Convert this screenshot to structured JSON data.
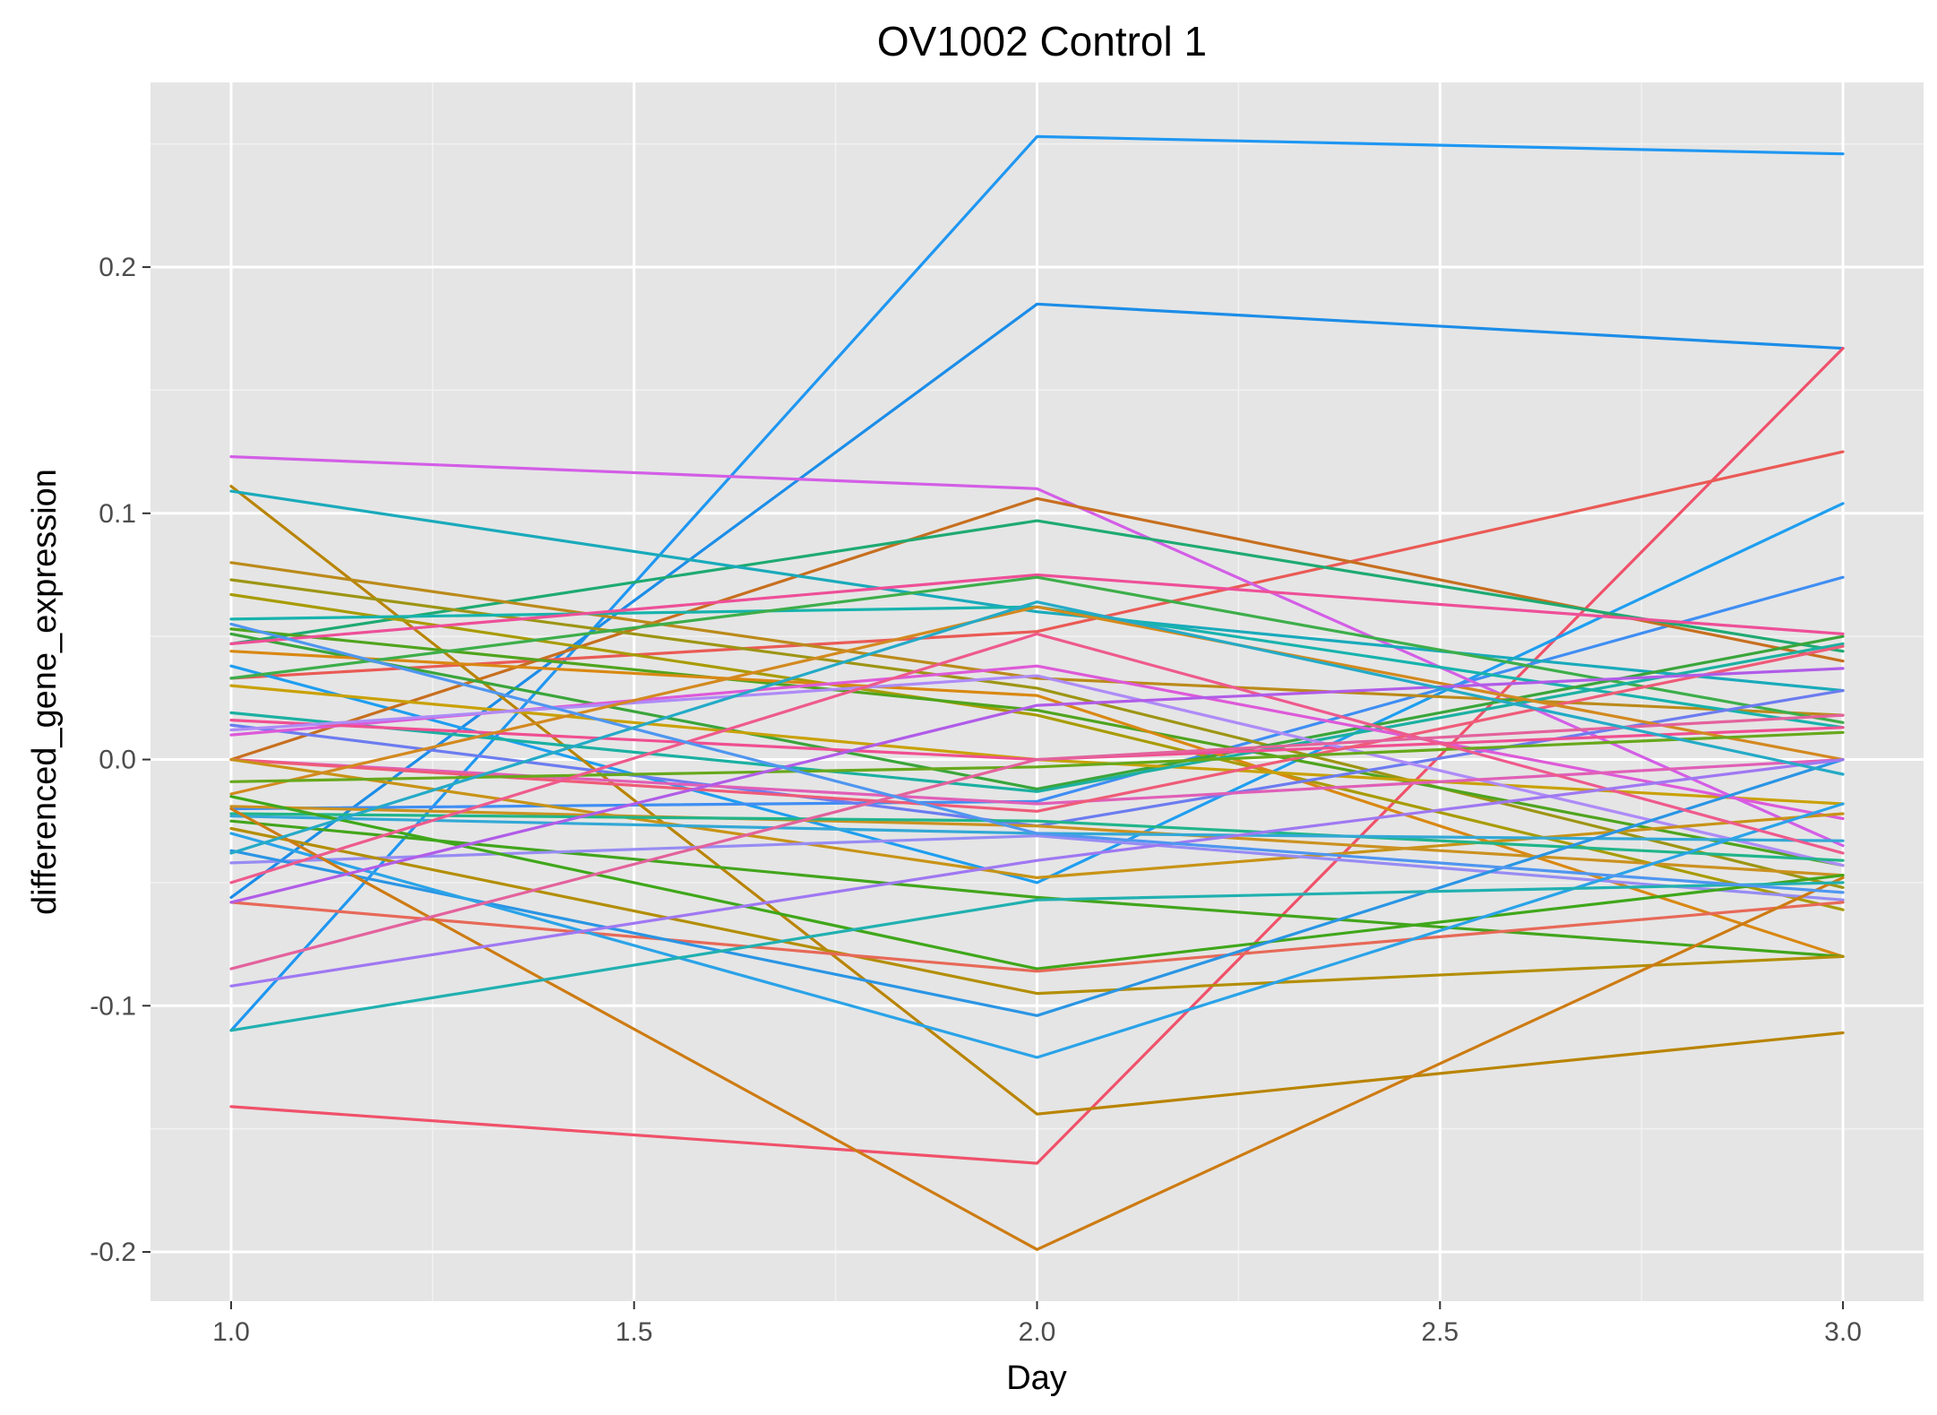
{
  "chart_data": {
    "type": "line",
    "title": "OV1002 Control 1",
    "xlabel": "Day",
    "ylabel": "differenced_gene_expression",
    "x": [
      1,
      2,
      3
    ],
    "xlim": [
      0.9,
      3.1
    ],
    "ylim": [
      -0.22,
      0.275
    ],
    "xticks": [
      1.0,
      1.5,
      2.0,
      2.5,
      3.0
    ],
    "xtick_labels": [
      "1.0",
      "1.5",
      "2.0",
      "2.5",
      "3.0"
    ],
    "yticks": [
      -0.2,
      -0.1,
      0.0,
      0.1,
      0.2
    ],
    "ytick_labels": [
      "-0.2",
      "-0.1",
      "0.0",
      "0.1",
      "0.2"
    ],
    "grid": true,
    "legend": "none",
    "background": "#e5e5e5",
    "series": [
      {
        "color": "#1f97f2",
        "values": [
          -0.11,
          0.253,
          0.246
        ]
      },
      {
        "color": "#1c8de8",
        "values": [
          -0.056,
          0.185,
          0.167
        ]
      },
      {
        "color": "#f0516a",
        "values": [
          -0.141,
          -0.164,
          0.167
        ]
      },
      {
        "color": "#ea5a55",
        "values": [
          0.033,
          0.052,
          0.125
        ]
      },
      {
        "color": "#1e9ef0",
        "values": [
          0.038,
          -0.05,
          0.104
        ]
      },
      {
        "color": "#3f8ef3",
        "values": [
          -0.02,
          -0.017,
          0.074
        ]
      },
      {
        "color": "#d35ee6",
        "values": [
          0.123,
          0.11,
          -0.035
        ]
      },
      {
        "color": "#c76f1f",
        "values": [
          0.0,
          0.106,
          0.04
        ]
      },
      {
        "color": "#1eaa72",
        "values": [
          0.047,
          0.097,
          0.044
        ]
      },
      {
        "color": "#b98400",
        "values": [
          0.111,
          -0.144,
          -0.111
        ]
      },
      {
        "color": "#19aabb",
        "values": [
          0.109,
          0.06,
          0.028
        ]
      },
      {
        "color": "#bb8a1a",
        "values": [
          0.08,
          0.033,
          0.018
        ]
      },
      {
        "color": "#9d9514",
        "values": [
          0.073,
          0.029,
          -0.052
        ]
      },
      {
        "color": "#a89b00",
        "values": [
          0.067,
          0.018,
          -0.061
        ]
      },
      {
        "color": "#17b3ad",
        "values": [
          0.057,
          0.062,
          0.013
        ]
      },
      {
        "color": "#4fa41e",
        "values": [
          0.053,
          0.02,
          -0.043
        ]
      },
      {
        "color": "#3aa53a",
        "values": [
          0.051,
          -0.012,
          0.05
        ]
      },
      {
        "color": "#ee4f98",
        "values": [
          0.047,
          0.075,
          0.051
        ]
      },
      {
        "color": "#d98812",
        "values": [
          0.044,
          0.026,
          -0.08
        ]
      },
      {
        "color": "#3dae4a",
        "values": [
          0.033,
          0.074,
          0.015
        ]
      },
      {
        "color": "#c9a106",
        "values": [
          0.03,
          0.0,
          -0.018
        ]
      },
      {
        "color": "#1bb0a2",
        "values": [
          0.019,
          -0.013,
          0.047
        ]
      },
      {
        "color": "#6c7cf0",
        "values": [
          0.014,
          -0.027,
          0.028
        ]
      },
      {
        "color": "#dd5ad9",
        "values": [
          0.01,
          0.038,
          -0.024
        ]
      },
      {
        "color": "#f04f91",
        "values": [
          0.016,
          0.0,
          0.013
        ]
      },
      {
        "color": "#ae8bf7",
        "values": [
          0.012,
          0.034,
          -0.043
        ]
      },
      {
        "color": "#e05fb7",
        "values": [
          0.0,
          -0.018,
          0.0
        ]
      },
      {
        "color": "#ef5b78",
        "values": [
          0.0,
          -0.021,
          0.046
        ]
      },
      {
        "color": "#c89316",
        "values": [
          0.0,
          -0.048,
          -0.022
        ]
      },
      {
        "color": "#d3891f",
        "values": [
          -0.014,
          0.062,
          0.0
        ]
      },
      {
        "color": "#cb9120",
        "values": [
          -0.019,
          -0.027,
          -0.047
        ]
      },
      {
        "color": "#67a81b",
        "values": [
          -0.009,
          -0.003,
          0.011
        ]
      },
      {
        "color": "#42a51c",
        "values": [
          -0.025,
          -0.056,
          -0.08
        ]
      },
      {
        "color": "#21b58a",
        "values": [
          -0.022,
          -0.025,
          -0.041
        ]
      },
      {
        "color": "#33a8d6",
        "values": [
          -0.023,
          -0.03,
          -0.033
        ]
      },
      {
        "color": "#978cf3",
        "values": [
          -0.042,
          -0.031,
          -0.057
        ]
      },
      {
        "color": "#b38e05",
        "values": [
          -0.028,
          -0.095,
          -0.08
        ]
      },
      {
        "color": "#3fa71a",
        "values": [
          -0.015,
          -0.085,
          -0.047
        ]
      },
      {
        "color": "#e76958",
        "values": [
          -0.058,
          -0.086,
          -0.058
        ]
      },
      {
        "color": "#2a95e4",
        "values": [
          -0.037,
          -0.104,
          0.0
        ]
      },
      {
        "color": "#2aa3e8",
        "values": [
          -0.03,
          -0.121,
          -0.018
        ]
      },
      {
        "color": "#cd7b12",
        "values": [
          -0.02,
          -0.199,
          -0.048
        ]
      },
      {
        "color": "#ee5a8d",
        "values": [
          -0.05,
          0.051,
          -0.038
        ]
      },
      {
        "color": "#e3629c",
        "values": [
          -0.085,
          0.0,
          0.018
        ]
      },
      {
        "color": "#9f78f2",
        "values": [
          -0.092,
          -0.041,
          0.0
        ]
      },
      {
        "color": "#21b0b0",
        "values": [
          -0.11,
          -0.057,
          -0.05
        ]
      },
      {
        "color": "#b15ce8",
        "values": [
          -0.058,
          0.022,
          0.037
        ]
      },
      {
        "color": "#4f96f0",
        "values": [
          0.055,
          -0.03,
          -0.054
        ]
      },
      {
        "color": "#24aac7",
        "values": [
          -0.038,
          0.064,
          -0.006
        ]
      }
    ]
  }
}
